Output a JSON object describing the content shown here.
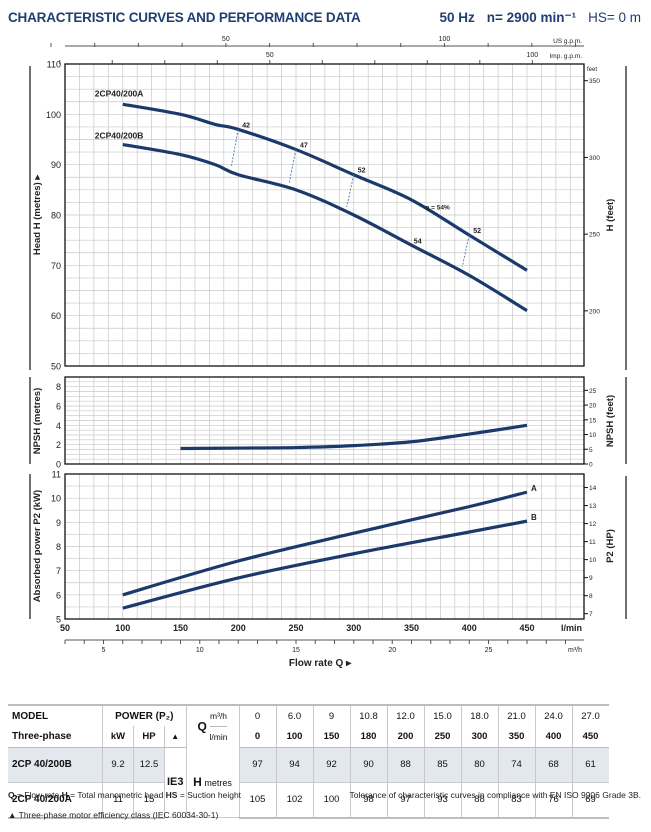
{
  "header": {
    "title": "CHARACTERISTIC CURVES AND PERFORMANCE DATA",
    "freq": "50 Hz",
    "speed": "n= 2900 min⁻¹",
    "suction": "HS= 0 m"
  },
  "chart_data": [
    {
      "type": "line",
      "title": "Head H",
      "xlabel": "Flow rate Q",
      "x_unit": "l/min",
      "ylabel": "Head H (metres)",
      "y2label": "H (feet)",
      "xlim": [
        50,
        500
      ],
      "ylim": [
        50,
        110
      ],
      "y_ticks": [
        50,
        60,
        70,
        80,
        90,
        100,
        110
      ],
      "y2_ticks": [
        200,
        250,
        300,
        350
      ],
      "y2_unit": "feet",
      "top_axis_us_gpm": {
        "label": "US g.p.m.",
        "ticks": [
          50,
          100
        ]
      },
      "top_axis_imp_gpm": {
        "label": "Imp. g.p.m.",
        "ticks": [
          50,
          100
        ]
      },
      "grid": true,
      "series": [
        {
          "name": "2CP40/200A",
          "x": [
            100,
            150,
            180,
            200,
            250,
            300,
            350,
            400,
            450
          ],
          "y": [
            102,
            100,
            98,
            97,
            93,
            88,
            83,
            76,
            69
          ]
        },
        {
          "name": "2CP40/200B",
          "x": [
            100,
            150,
            180,
            200,
            250,
            300,
            350,
            400,
            450
          ],
          "y": [
            94,
            92,
            90,
            88,
            85,
            80,
            74,
            68,
            61
          ]
        }
      ],
      "efficiency_markers": [
        {
          "label": "42",
          "q": 200
        },
        {
          "label": "47",
          "q": 250
        },
        {
          "label": "52",
          "q": 300
        },
        {
          "label": "η = 54%",
          "q": 370
        },
        {
          "label": "54",
          "q": 350
        },
        {
          "label": "52",
          "q": 400
        }
      ]
    },
    {
      "type": "line",
      "title": "NPSH",
      "ylabel": "NPSH (metres)",
      "y2label": "NPSH (feet)",
      "xlim": [
        50,
        500
      ],
      "ylim": [
        0,
        9
      ],
      "y_ticks": [
        0,
        2,
        4,
        6,
        8
      ],
      "y2_ticks": [
        0,
        5,
        10,
        15,
        20,
        25
      ],
      "grid": true,
      "series": [
        {
          "name": "NPSH",
          "x": [
            150,
            200,
            250,
            300,
            350,
            400,
            450
          ],
          "y": [
            1.6,
            1.65,
            1.7,
            1.9,
            2.3,
            3.1,
            4.0
          ]
        }
      ]
    },
    {
      "type": "line",
      "title": "Absorbed power P2",
      "ylabel": "Absorbed power P2 (kW)",
      "y2label": "P2 (HP)",
      "xlim": [
        50,
        500
      ],
      "ylim": [
        5,
        11
      ],
      "y_ticks": [
        5,
        6,
        7,
        8,
        9,
        10,
        11
      ],
      "y2_ticks": [
        7,
        8,
        9,
        10,
        11,
        12,
        13,
        14
      ],
      "x_ticks": [
        50,
        100,
        150,
        200,
        250,
        300,
        350,
        400,
        450
      ],
      "x_unit": "l/min",
      "bottom_axis_m3h": {
        "label": "m³/h",
        "ticks": [
          5,
          10,
          15,
          20,
          25
        ]
      },
      "grid": true,
      "series": [
        {
          "name": "A",
          "x": [
            100,
            200,
            300,
            400,
            450
          ],
          "y": [
            6.0,
            7.4,
            8.55,
            9.65,
            10.25
          ]
        },
        {
          "name": "B",
          "x": [
            100,
            200,
            300,
            400,
            450
          ],
          "y": [
            5.45,
            6.7,
            7.7,
            8.6,
            9.05
          ]
        }
      ]
    }
  ],
  "table": {
    "head": {
      "model": "MODEL",
      "phase": "Three-phase",
      "power": "POWER (P₂)",
      "kw": "kW",
      "hp": "HP",
      "tri": "▲",
      "q": "Q",
      "m3h": "m³/h",
      "lmin": "l/min",
      "h": "H",
      "metres": "metres",
      "ie": "IE3"
    },
    "q_m3h": [
      "0",
      "6.0",
      "9",
      "10.8",
      "12.0",
      "15.0",
      "18.0",
      "21.0",
      "24.0",
      "27.0"
    ],
    "q_lmin": [
      "0",
      "100",
      "150",
      "180",
      "200",
      "250",
      "300",
      "350",
      "400",
      "450"
    ],
    "rows": [
      {
        "model": "2CP 40/200B",
        "kw": "9.2",
        "hp": "12.5",
        "h": [
          "97",
          "94",
          "92",
          "90",
          "88",
          "85",
          "80",
          "74",
          "68",
          "61"
        ]
      },
      {
        "model": "2CP 40/200A",
        "kw": "11",
        "hp": "15",
        "h": [
          "105",
          "102",
          "100",
          "98",
          "97",
          "93",
          "88",
          "83",
          "76",
          "69"
        ]
      }
    ]
  },
  "footer": {
    "legend_q": "Q",
    "legend_q_text": " = Flow rate  ",
    "legend_h": "H",
    "legend_h_text": " = Total manometric head  ",
    "legend_hs": "HS",
    "legend_hs_text": " = Suction height",
    "tolerance": "Tolerance of characteristic curves in compliance with EN ISO 9906 Grade 3B.",
    "motor_note": "▲  Three-phase motor efficiency class (IEC 60034-30-1)"
  },
  "colors": {
    "curve": "#1b3a6b",
    "title": "#1f3f73",
    "grid": "#c8c8c8",
    "row_shade": "#e3e8ee"
  }
}
